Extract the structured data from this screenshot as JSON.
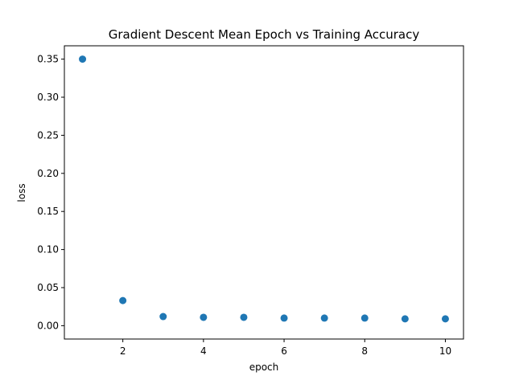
{
  "chart_data": {
    "type": "scatter",
    "title": "Gradient Descent Mean Epoch vs Training Accuracy",
    "xlabel": "epoch",
    "ylabel": "loss",
    "xlim": [
      0.55,
      10.45
    ],
    "ylim": [
      -0.0175,
      0.3675
    ],
    "x_ticks": [
      2,
      4,
      6,
      8,
      10
    ],
    "x_tick_labels": [
      "2",
      "4",
      "6",
      "8",
      "10"
    ],
    "y_ticks": [
      0.0,
      0.05,
      0.1,
      0.15,
      0.2,
      0.25,
      0.3,
      0.35
    ],
    "y_tick_labels": [
      "0.00",
      "0.05",
      "0.10",
      "0.15",
      "0.20",
      "0.25",
      "0.30",
      "0.35"
    ],
    "grid": false,
    "marker_color": "#1f77b4",
    "x": [
      1,
      2,
      3,
      4,
      5,
      6,
      7,
      8,
      9,
      10
    ],
    "y": [
      0.35,
      0.033,
      0.012,
      0.011,
      0.011,
      0.01,
      0.01,
      0.01,
      0.009,
      0.009
    ]
  }
}
